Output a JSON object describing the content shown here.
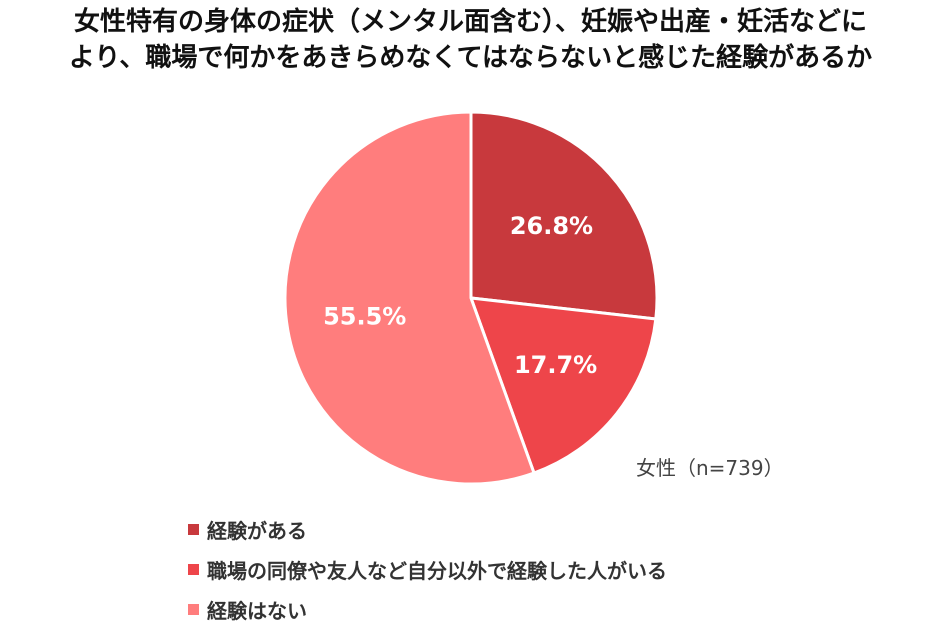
{
  "chart_data": {
    "type": "pie",
    "title": [
      "女性特有の身体の症状（メンタル面含む）、妊娠や出産・妊活などに",
      "より、職場で何かをあきらめなくてはならないと感じた経験があるか"
    ],
    "note": "女性（n=739）",
    "unit": "%",
    "slices": [
      {
        "label": "経験がある",
        "value": 26.8,
        "display": "26.8%",
        "color": "#c8393d"
      },
      {
        "label": "職場の同僚や友人など自分以外で経験した人がいる",
        "value": 17.7,
        "display": "17.7%",
        "color": "#ee454a"
      },
      {
        "label": "経験はない",
        "value": 55.5,
        "display": "55.5%",
        "color": "#ff7d7d"
      }
    ],
    "legend_position": "bottom-left"
  }
}
